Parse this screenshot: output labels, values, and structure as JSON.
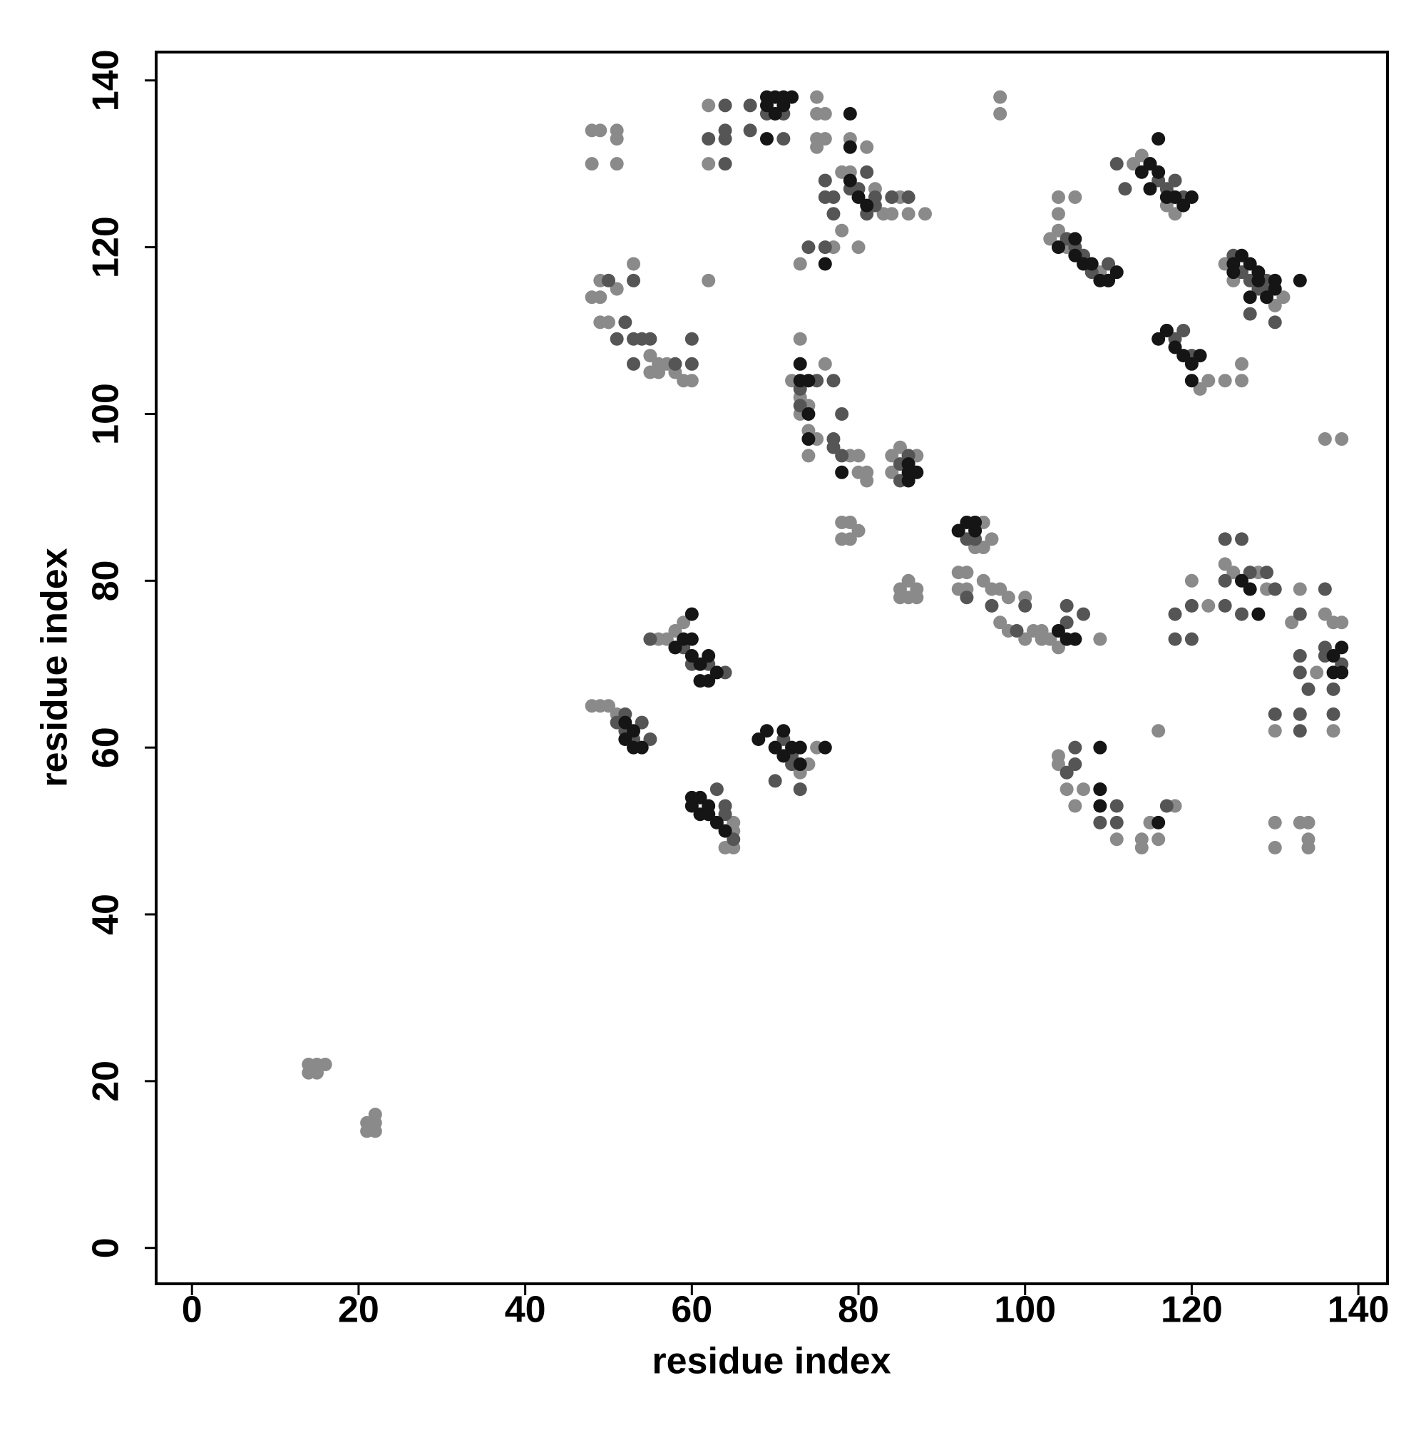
{
  "chart_data": {
    "type": "scatter",
    "xlabel": "residue index",
    "ylabel": "residue index",
    "xlim": [
      -4.3,
      143.5
    ],
    "ylim": [
      -4.3,
      143.4
    ],
    "xticks": [
      0,
      20,
      40,
      60,
      80,
      100,
      120,
      140
    ],
    "yticks": [
      0,
      20,
      40,
      60,
      80,
      100,
      120,
      140
    ],
    "series": [
      {
        "color": "#8a8a8a",
        "x": [
          14,
          15,
          16,
          14,
          15,
          21,
          22,
          21,
          22,
          22,
          48,
          49,
          51,
          51,
          48,
          51,
          48,
          49,
          49,
          51,
          53,
          49,
          50,
          55,
          56,
          57,
          58,
          59,
          60,
          55,
          56,
          62,
          62,
          62,
          75,
          75,
          76,
          75,
          76,
          75,
          79,
          81,
          78,
          79,
          82,
          83,
          84,
          78,
          77,
          80,
          73,
          73,
          76,
          72,
          73,
          74,
          73,
          74,
          75,
          74,
          79,
          80,
          80,
          81,
          81,
          78,
          79,
          78,
          79,
          80,
          85,
          84,
          86,
          87,
          84,
          85,
          86,
          87,
          85,
          86,
          87,
          92,
          93,
          92,
          93,
          94,
          95,
          95,
          96,
          95,
          96,
          97,
          98,
          97,
          98,
          100,
          100,
          101,
          102,
          102,
          103,
          104,
          97,
          97,
          104,
          106,
          104,
          104,
          103,
          105,
          108,
          109,
          109,
          113,
          114,
          118,
          117,
          124,
          125,
          126,
          126,
          124,
          122,
          121,
          120,
          122,
          124,
          125,
          114,
          114,
          115,
          116,
          116,
          118,
          111,
          104,
          104,
          105,
          105,
          106,
          107,
          130,
          130,
          130,
          133,
          134,
          134,
          134,
          132,
          133,
          136,
          138,
          137,
          136,
          137,
          138,
          135,
          128,
          129,
          131,
          130,
          48,
          49,
          50,
          51,
          59,
          58,
          56,
          57,
          73,
          74,
          75,
          64,
          65,
          65,
          65,
          88,
          86,
          85
        ],
        "y": [
          22,
          22,
          22,
          21,
          21,
          15,
          16,
          14,
          14,
          15,
          134,
          134,
          134,
          133,
          130,
          130,
          114,
          114,
          116,
          115,
          118,
          111,
          111,
          107,
          106,
          106,
          105,
          104,
          104,
          105,
          105,
          137,
          130,
          116,
          138,
          136,
          136,
          133,
          133,
          132,
          133,
          132,
          129,
          129,
          127,
          124,
          124,
          122,
          120,
          120,
          118,
          109,
          106,
          104,
          102,
          101,
          100,
          98,
          97,
          95,
          95,
          95,
          93,
          93,
          92,
          87,
          87,
          85,
          85,
          86,
          96,
          95,
          95,
          95,
          93,
          79,
          80,
          79,
          78,
          78,
          78,
          81,
          81,
          79,
          79,
          84,
          84,
          87,
          85,
          80,
          79,
          79,
          78,
          75,
          74,
          78,
          73,
          74,
          74,
          73,
          73,
          72,
          138,
          136,
          126,
          126,
          124,
          122,
          121,
          120,
          118,
          117,
          73,
          130,
          131,
          124,
          125,
          118,
          116,
          106,
          104,
          104,
          104,
          103,
          80,
          77,
          82,
          81,
          49,
          48,
          51,
          49,
          62,
          53,
          49,
          59,
          58,
          57,
          55,
          53,
          55,
          62,
          51,
          48,
          51,
          51,
          49,
          48,
          75,
          79,
          97,
          97,
          62,
          76,
          75,
          75,
          69,
          81,
          79,
          114,
          113,
          65,
          65,
          65,
          64,
          75,
          74,
          73,
          73,
          57,
          58,
          60,
          48,
          48,
          50,
          51,
          124,
          124,
          126
        ]
      },
      {
        "color": "#555555",
        "x": [
          50,
          52,
          51,
          53,
          53,
          54,
          55,
          53,
          58,
          60,
          60,
          62,
          64,
          64,
          64,
          64,
          67,
          67,
          69,
          71,
          71,
          76,
          76,
          77,
          77,
          80,
          81,
          82,
          81,
          82,
          84,
          86,
          74,
          76,
          79,
          73,
          73,
          75,
          77,
          78,
          77,
          78,
          77,
          85,
          86,
          85,
          92,
          93,
          94,
          93,
          96,
          99,
          100,
          105,
          105,
          106,
          107,
          106,
          106,
          105,
          109,
          111,
          111,
          109,
          117,
          55,
          59,
          60,
          62,
          64,
          58,
          51,
          52,
          52,
          53,
          54,
          55,
          63,
          64,
          64,
          65,
          62,
          71,
          72,
          73,
          73,
          72,
          70,
          115,
          116,
          117,
          118,
          119,
          112,
          111,
          105,
          106,
          107,
          108,
          110,
          110,
          125,
          126,
          127,
          128,
          129,
          127,
          130,
          129,
          117,
          118,
          119,
          120,
          120,
          118,
          120,
          118,
          124,
          126,
          124,
          126,
          127,
          129,
          130,
          124,
          133,
          133,
          133,
          134,
          133,
          133,
          130,
          136,
          136,
          137,
          137,
          138,
          136
        ],
        "y": [
          116,
          111,
          109,
          116,
          109,
          109,
          109,
          106,
          106,
          106,
          109,
          133,
          137,
          134,
          133,
          130,
          137,
          134,
          136,
          136,
          133,
          128,
          126,
          126,
          124,
          127,
          129,
          126,
          124,
          125,
          126,
          126,
          120,
          120,
          127,
          103,
          101,
          104,
          104,
          100,
          97,
          95,
          96,
          94,
          95,
          92,
          86,
          85,
          85,
          78,
          77,
          74,
          77,
          77,
          75,
          73,
          76,
          60,
          58,
          57,
          55,
          53,
          51,
          51,
          53,
          73,
          72,
          70,
          70,
          69,
          72,
          63,
          62,
          64,
          61,
          63,
          61,
          55,
          53,
          52,
          49,
          52,
          61,
          58,
          60,
          55,
          59,
          56,
          130,
          128,
          127,
          128,
          126,
          127,
          130,
          121,
          120,
          119,
          117,
          118,
          116,
          119,
          117,
          116,
          115,
          115,
          112,
          111,
          116,
          110,
          109,
          110,
          107,
          77,
          76,
          73,
          73,
          85,
          85,
          80,
          76,
          81,
          81,
          79,
          77,
          76,
          71,
          69,
          67,
          64,
          62,
          64,
          72,
          71,
          67,
          64,
          70,
          79
        ]
      },
      {
        "color": "#151515",
        "x": [
          69,
          70,
          71,
          72,
          69,
          70,
          71,
          69,
          79,
          79,
          76,
          73,
          73,
          74,
          74,
          74,
          78,
          79,
          80,
          81,
          86,
          87,
          86,
          86,
          92,
          93,
          94,
          94,
          104,
          105,
          106,
          60,
          58,
          59,
          60,
          60,
          61,
          62,
          61,
          62,
          63,
          52,
          53,
          54,
          53,
          52,
          60,
          60,
          61,
          62,
          62,
          63,
          64,
          61,
          68,
          69,
          70,
          71,
          71,
          72,
          73,
          73,
          76,
          109,
          109,
          109,
          114,
          115,
          115,
          116,
          117,
          118,
          119,
          120,
          116,
          104,
          106,
          107,
          108,
          109,
          110,
          111,
          106,
          125,
          125,
          126,
          127,
          128,
          128,
          129,
          130,
          130,
          133,
          127,
          116,
          117,
          118,
          119,
          120,
          120,
          121,
          126,
          127,
          128,
          116,
          137,
          138,
          137,
          138
        ],
        "y": [
          138,
          138,
          138,
          138,
          137,
          136,
          137,
          133,
          136,
          132,
          118,
          106,
          104,
          104,
          100,
          97,
          93,
          128,
          126,
          125,
          93,
          93,
          92,
          94,
          86,
          87,
          87,
          86,
          74,
          73,
          73,
          76,
          72,
          73,
          73,
          71,
          70,
          71,
          68,
          68,
          69,
          63,
          62,
          60,
          60,
          61,
          54,
          53,
          54,
          53,
          52,
          51,
          50,
          52,
          61,
          62,
          60,
          62,
          59,
          60,
          60,
          58,
          60,
          60,
          53,
          55,
          129,
          130,
          127,
          129,
          126,
          126,
          125,
          126,
          133,
          120,
          119,
          118,
          118,
          116,
          116,
          117,
          121,
          118,
          117,
          119,
          118,
          117,
          116,
          114,
          116,
          115,
          116,
          114,
          109,
          110,
          108,
          107,
          106,
          104,
          107,
          80,
          79,
          76,
          51,
          71,
          72,
          69,
          69
        ]
      }
    ]
  }
}
